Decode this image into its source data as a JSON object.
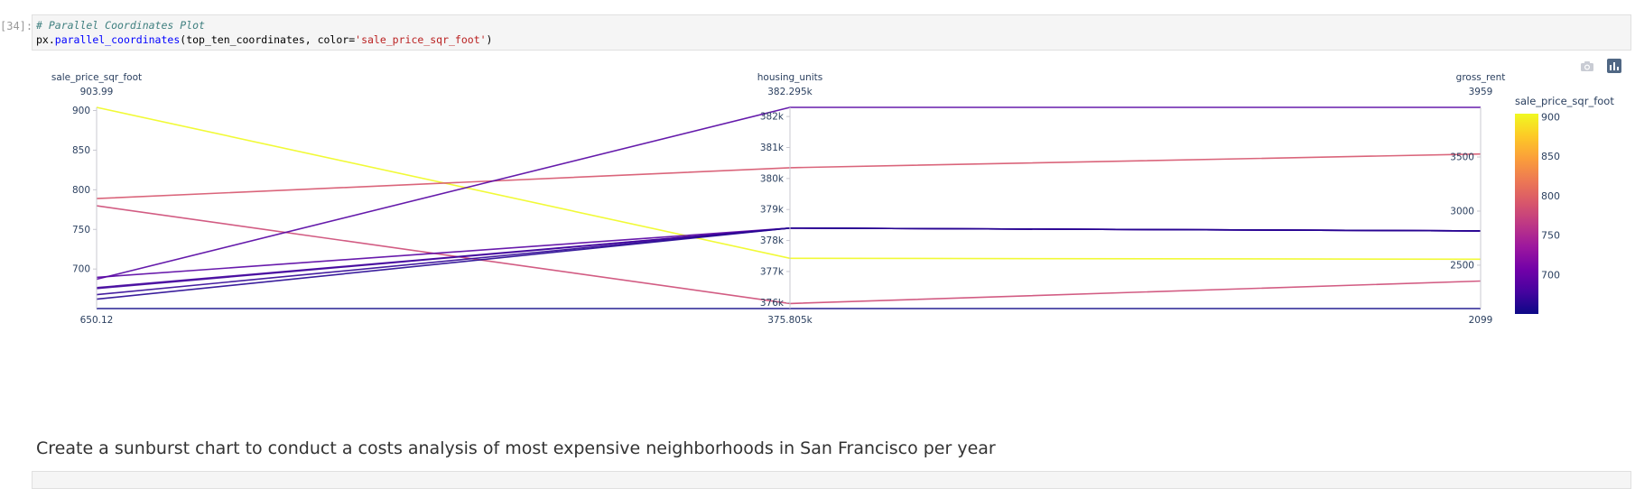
{
  "cell": {
    "prompt": "[34]:",
    "comment": "# Parallel Coordinates Plot",
    "code_obj": "px.",
    "code_fn": "parallel_coordinates",
    "code_args": "(top_ten_coordinates, color=",
    "code_str": "'sale_price_sqr_foot'",
    "code_end": ")"
  },
  "toolbar": {
    "camera": "camera-icon",
    "plotly": "plotly-logo-icon"
  },
  "chart_data": {
    "type": "parallel_coordinates",
    "dimensions": [
      {
        "label": "sale_price_sqr_foot",
        "range": [
          650.12,
          903.99
        ],
        "range_labels": [
          "650.12",
          "903.99"
        ],
        "ticks": [
          700,
          750,
          800,
          850,
          900
        ],
        "tick_labels": [
          "700",
          "750",
          "800",
          "850",
          "900"
        ]
      },
      {
        "label": "housing_units",
        "range": [
          375805,
          382295
        ],
        "range_labels": [
          "375.805k",
          "382.295k"
        ],
        "ticks": [
          376000,
          377000,
          378000,
          379000,
          380000,
          381000,
          382000
        ],
        "tick_labels": [
          "376k",
          "377k",
          "378k",
          "379k",
          "380k",
          "381k",
          "382k"
        ]
      },
      {
        "label": "gross_rent",
        "range": [
          2099,
          3959
        ],
        "range_labels": [
          "2099",
          "3959"
        ],
        "ticks": [
          2500,
          3000,
          3500
        ],
        "tick_labels": [
          "2500",
          "3000",
          "3500"
        ]
      }
    ],
    "lines": [
      {
        "values": [
          903.99,
          377427,
          2555
        ]
      },
      {
        "values": [
          788.84,
          380348,
          3528
        ]
      },
      {
        "values": [
          779.81,
          375967,
          2353
        ]
      },
      {
        "values": [
          689.56,
          378401,
          2817
        ]
      },
      {
        "values": [
          687.09,
          382295,
          3959
        ]
      },
      {
        "values": [
          676.51,
          378401,
          2817
        ]
      },
      {
        "values": [
          675.35,
          378401,
          2817
        ]
      },
      {
        "values": [
          667.69,
          378401,
          2817
        ]
      },
      {
        "values": [
          662.01,
          378401,
          2817
        ]
      },
      {
        "values": [
          650.12,
          375805,
          2099
        ]
      }
    ],
    "color": {
      "title": "sale_price_sqr_foot",
      "min": 650.12,
      "max": 903.99,
      "ticks": [
        700,
        750,
        800,
        850,
        900
      ],
      "tick_labels": [
        "700",
        "750",
        "800",
        "850",
        "900"
      ],
      "scale": [
        "#0d0887",
        "#46039f",
        "#7201a8",
        "#9c179e",
        "#bd3786",
        "#d8576b",
        "#ed7953",
        "#fb9f3a",
        "#fdca26",
        "#f0f921"
      ]
    }
  },
  "markdown": {
    "heading": "Create a sunburst chart to conduct a costs analysis of most expensive neighborhoods in San Francisco per year"
  }
}
